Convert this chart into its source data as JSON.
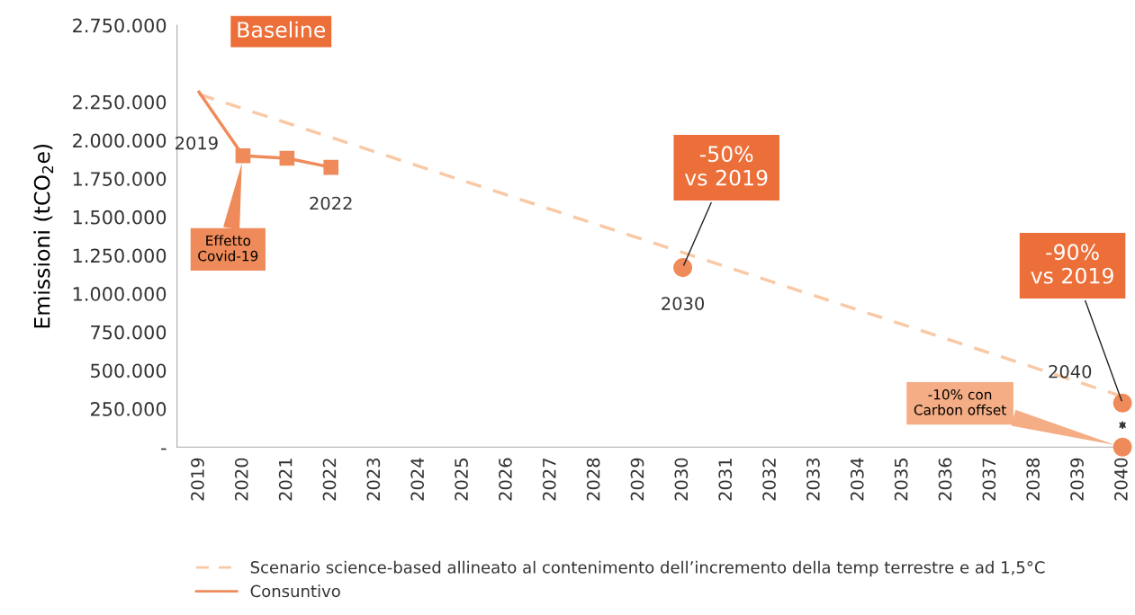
{
  "chart_data": {
    "type": "line",
    "ylabel": "Emissioni (tCO$_{2}$e)",
    "categories": [
      "2019",
      "2020",
      "2021",
      "2022",
      "2023",
      "2024",
      "2025",
      "2026",
      "2027",
      "2028",
      "2029",
      "2030",
      "2031",
      "2032",
      "2033",
      "2034",
      "2035",
      "2036",
      "2037",
      "2038",
      "2039",
      "2040"
    ],
    "series": [
      {
        "name": "Scenario science-based allineato al contenimento dell’incremento della temp terrestre e ad 1,5°C",
        "color": "#f9c9a5",
        "line_style": "dashed",
        "marker": "none",
        "values": [
          2300000,
          null,
          null,
          null,
          null,
          null,
          null,
          null,
          null,
          null,
          null,
          null,
          null,
          null,
          null,
          null,
          null,
          null,
          null,
          null,
          null,
          330000
        ]
      },
      {
        "name": "Consuntivo",
        "color": "#ef8b5a",
        "line_style": "solid",
        "marker": "square",
        "values": [
          2314000,
          1899000,
          1883000,
          1824000,
          null,
          null,
          null,
          null,
          null,
          null,
          null,
          null,
          null,
          null,
          null,
          null,
          null,
          null,
          null,
          null,
          null,
          null
        ]
      },
      {
        "type": "scatter",
        "color": "#ef8b5a",
        "marker": "circle",
        "values": [
          null,
          null,
          null,
          null,
          null,
          null,
          null,
          null,
          null,
          null,
          null,
          1170000,
          null,
          null,
          null,
          null,
          null,
          null,
          null,
          null,
          null,
          287000
        ]
      },
      {
        "type": "scatter",
        "color": "#ef8b5a",
        "marker": "circle",
        "values": [
          null,
          null,
          null,
          null,
          null,
          null,
          null,
          null,
          null,
          null,
          null,
          null,
          null,
          null,
          null,
          null,
          null,
          null,
          null,
          null,
          null,
          0
        ]
      }
    ],
    "ylim": [
      0,
      2750000
    ],
    "yticks": [
      {
        "value": 0,
        "label": "-"
      },
      {
        "value": 250000,
        "label": "250.000"
      },
      {
        "value": 500000,
        "label": "500.000"
      },
      {
        "value": 750000,
        "label": "750.000"
      },
      {
        "value": 1000000,
        "label": "1.000.000"
      },
      {
        "value": 1250000,
        "label": "1.250.000"
      },
      {
        "value": 1500000,
        "label": "1.500.000"
      },
      {
        "value": 1750000,
        "label": "1.750.000"
      },
      {
        "value": 2000000,
        "label": "2.000.000"
      },
      {
        "value": 2250000,
        "label": "2.250.000"
      },
      {
        "value": 2750000,
        "label": "2.750.000"
      }
    ],
    "grid": false,
    "legend": "bottom",
    "annotations": [
      "Baseline",
      {
        "text": "2019",
        "x": "2019",
        "y": 2314000
      },
      {
        "text": "Effetto\nCovid-19",
        "x": "2020",
        "y": 1899000
      },
      {
        "text": "2022",
        "x": "2022",
        "y": 1824000
      },
      {
        "text": "-50%\nvs 2019",
        "x": "2030",
        "y": 1170000
      },
      {
        "text": "2030",
        "x": "2030",
        "y": 1170000
      },
      {
        "text": "-90%\nvs 2019",
        "x": "2040",
        "y": 287000
      },
      {
        "text": "2040",
        "x": "2040",
        "y": 287000
      },
      {
        "text": "-10% con\nCarbon offset",
        "x": "2040",
        "y": 0
      }
    ]
  }
}
